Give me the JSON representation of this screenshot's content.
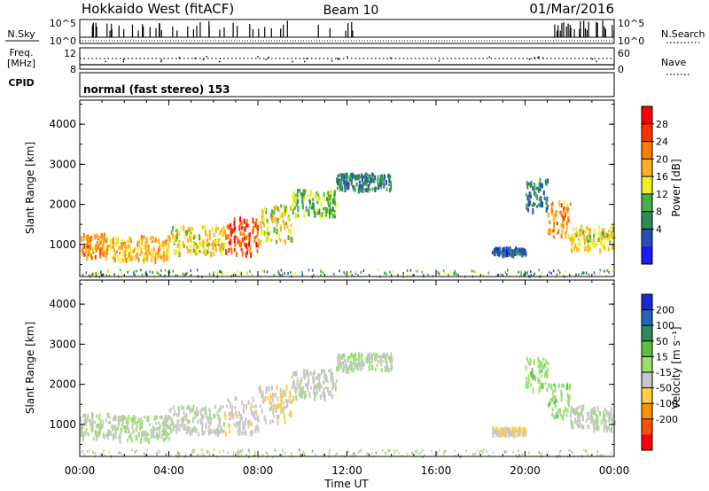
{
  "header": {
    "station": "Hokkaido West (fitACF)",
    "beam": "Beam 10",
    "date": "01/Mar/2016"
  },
  "left_labels": {
    "nsky": "N.Sky",
    "freq_line1": "Freq.",
    "freq_line2": "[MHz]",
    "cpid": "CPID"
  },
  "right_labels": {
    "nsearch": "N.Search",
    "nave": "Nave"
  },
  "cpid_text": "normal (fast stereo) 153",
  "noise_panel": {
    "top_tick": "10^5",
    "bottom_tick": "10^0"
  },
  "freq_panel": {
    "left_ticks": [
      "12",
      "8"
    ],
    "right_ticks": [
      "60",
      "0"
    ]
  },
  "chart_data": [
    {
      "type": "heatmap",
      "panel": "power",
      "xlabel": "",
      "ylabel": "Slant Range [km]",
      "xlim": [
        0,
        24
      ],
      "ylim": [
        200,
        4600
      ],
      "x_ticks": [
        "00:00",
        "04:00",
        "08:00",
        "12:00",
        "16:00",
        "20:00",
        "00:00"
      ],
      "y_ticks": [
        "1000",
        "2000",
        "3000",
        "4000"
      ],
      "colorbar": {
        "label": "Power [dB]",
        "ticks": [
          "4",
          "8",
          "12",
          "16",
          "20",
          "24",
          "28"
        ],
        "colors": [
          "#1a1aff",
          "#2850b4",
          "#2f8a5a",
          "#45b045",
          "#f0f020",
          "#ffb020",
          "#ff7a00",
          "#ff3000",
          "#ff0000"
        ],
        "range": [
          0,
          30
        ]
      },
      "scatter_bands": [
        {
          "t": [
            0.0,
            1.5
          ],
          "range": [
            700,
            1300
          ],
          "power": 20
        },
        {
          "t": [
            1.5,
            4.0
          ],
          "range": [
            650,
            1250
          ],
          "power": 18
        },
        {
          "t": [
            4.0,
            6.5
          ],
          "range": [
            800,
            1500
          ],
          "power": 16
        },
        {
          "t": [
            6.5,
            8.0
          ],
          "range": [
            800,
            1700
          ],
          "power": 24
        },
        {
          "t": [
            8.0,
            9.5
          ],
          "range": [
            1100,
            2000
          ],
          "power": 16
        },
        {
          "t": [
            9.5,
            11.5
          ],
          "range": [
            1700,
            2400
          ],
          "power": 12
        },
        {
          "t": [
            11.5,
            14.0
          ],
          "range": [
            2400,
            2800
          ],
          "power": 8
        },
        {
          "t": [
            18.5,
            20.0
          ],
          "range": [
            800,
            950
          ],
          "power": 6
        },
        {
          "t": [
            20.0,
            21.0
          ],
          "range": [
            1900,
            2700
          ],
          "power": 8
        },
        {
          "t": [
            21.0,
            22.0
          ],
          "range": [
            1200,
            2100
          ],
          "power": 20
        },
        {
          "t": [
            22.0,
            24.0
          ],
          "range": [
            900,
            1500
          ],
          "power": 16
        }
      ]
    },
    {
      "type": "heatmap",
      "panel": "velocity",
      "xlabel": "Time UT",
      "ylabel": "Slant Range [km]",
      "xlim": [
        0,
        24
      ],
      "ylim": [
        200,
        4600
      ],
      "x_ticks": [
        "00:00",
        "04:00",
        "08:00",
        "12:00",
        "16:00",
        "20:00",
        "00:00"
      ],
      "y_ticks": [
        "1000",
        "2000",
        "3000",
        "4000"
      ],
      "colorbar": {
        "label": "Velocity [m s⁻¹]",
        "ticks": [
          "200",
          "100",
          "50",
          "15",
          "-15",
          "-50",
          "-100",
          "-200"
        ],
        "colors": [
          "#1a2ad0",
          "#2a62b8",
          "#2f8a5a",
          "#5ac040",
          "#9ae070",
          "#c8c8c8",
          "#ffd040",
          "#ff9000",
          "#ff5000",
          "#ff0000"
        ],
        "range": [
          -250,
          250
        ]
      },
      "scatter_bands": [
        {
          "t": [
            0.0,
            1.5
          ],
          "range": [
            700,
            1300
          ],
          "velocity": 0
        },
        {
          "t": [
            1.5,
            4.0
          ],
          "range": [
            650,
            1250
          ],
          "velocity": 0
        },
        {
          "t": [
            4.0,
            6.5
          ],
          "range": [
            800,
            1500
          ],
          "velocity": -20
        },
        {
          "t": [
            6.5,
            8.0
          ],
          "range": [
            800,
            1700
          ],
          "velocity": -30
        },
        {
          "t": [
            8.0,
            9.5
          ],
          "range": [
            1100,
            2000
          ],
          "velocity": -40
        },
        {
          "t": [
            9.5,
            11.5
          ],
          "range": [
            1700,
            2400
          ],
          "velocity": -20
        },
        {
          "t": [
            11.5,
            14.0
          ],
          "range": [
            2400,
            2800
          ],
          "velocity": 0
        },
        {
          "t": [
            18.5,
            20.0
          ],
          "range": [
            800,
            950
          ],
          "velocity": -50
        },
        {
          "t": [
            20.0,
            21.0
          ],
          "range": [
            1900,
            2700
          ],
          "velocity": 30
        },
        {
          "t": [
            21.0,
            22.0
          ],
          "range": [
            1200,
            2100
          ],
          "velocity": 25
        },
        {
          "t": [
            22.0,
            24.0
          ],
          "range": [
            900,
            1500
          ],
          "velocity": 0
        }
      ]
    }
  ]
}
